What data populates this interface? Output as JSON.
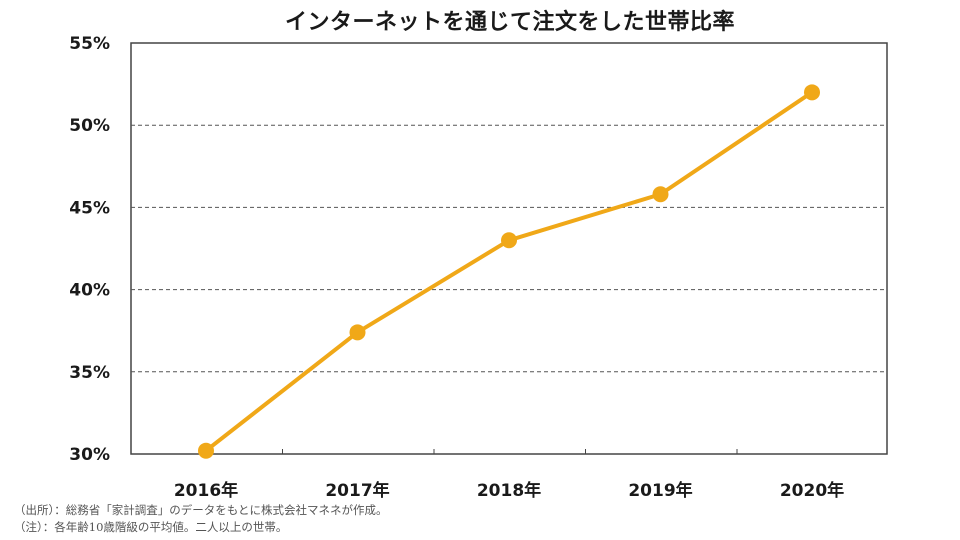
{
  "chart_data": {
    "type": "line",
    "title": "インターネットを通じて注文をした世帯比率",
    "categories": [
      "2016年",
      "2017年",
      "2018年",
      "2019年",
      "2020年"
    ],
    "series": [
      {
        "values": [
          30.2,
          37.4,
          43.0,
          45.8,
          52.0
        ],
        "color": "#F0A818"
      }
    ],
    "ylim": [
      30,
      55
    ],
    "yticks": [
      30,
      35,
      40,
      45,
      50,
      55
    ],
    "ytick_labels": [
      "30%",
      "35%",
      "40%",
      "45%",
      "50%",
      "55%"
    ],
    "grid": "horizontal-dashed",
    "xlabel": "",
    "ylabel": ""
  },
  "footnotes": {
    "source": "（出所）：総務省「家計調査」のデータをもとに株式会社マネネが作成。",
    "note": "（注）：各年齢10歳階級の平均値。二人以上の世帯。"
  }
}
